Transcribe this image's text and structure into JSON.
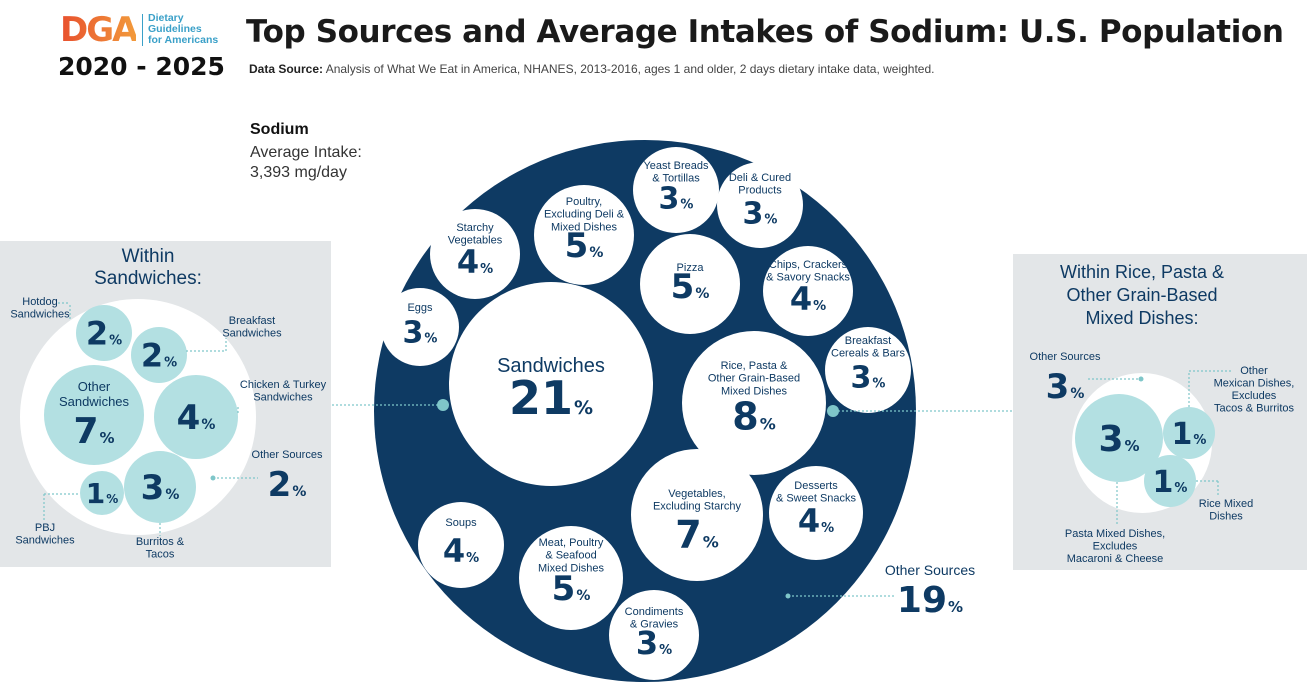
{
  "header": {
    "logo_mark": "DGA",
    "logo_lines": [
      "Dietary",
      "Guidelines",
      "for Americans"
    ],
    "years": "2020 - 2025",
    "title": "Top Sources and Average Intakes of Sodium: U.S. Population",
    "source_label": "Data Source:",
    "source_text": "Analysis of What We Eat in America, NHANES, 2013-2016, ages 1 and older, 2 days dietary intake data, weighted."
  },
  "intake": {
    "nutrient": "Sodium",
    "label": "Average Intake:",
    "value": "3,393 mg/day"
  },
  "colors": {
    "ring": "#0e3a63",
    "bubble": "#ffffff",
    "sub_bubble": "#b3e0e2",
    "panel": "#e3e6e8",
    "text": "#0e3a63",
    "connector": "#7fc6c9"
  },
  "chart_data": [
    {
      "type": "bubble",
      "name_visible": false,
      "unit": "%",
      "categories": [
        {
          "label": "Sandwiches",
          "value": 21
        },
        {
          "label": "Rice, Pasta & Other Grain-Based Mixed Dishes",
          "value": 8
        },
        {
          "label": "Vegetables, Excluding Starchy",
          "value": 7
        },
        {
          "label": "Poultry, Excluding Deli & Mixed Dishes",
          "value": 5
        },
        {
          "label": "Pizza",
          "value": 5
        },
        {
          "label": "Meat, Poultry & Seafood Mixed Dishes",
          "value": 5
        },
        {
          "label": "Starchy Vegetables",
          "value": 4
        },
        {
          "label": "Chips, Crackers & Savory Snacks",
          "value": 4
        },
        {
          "label": "Desserts & Sweet Snacks",
          "value": 4
        },
        {
          "label": "Soups",
          "value": 4
        },
        {
          "label": "Eggs",
          "value": 3
        },
        {
          "label": "Yeast Breads & Tortillas",
          "value": 3
        },
        {
          "label": "Deli & Cured Products",
          "value": 3
        },
        {
          "label": "Breakfast Cereals & Bars",
          "value": 3
        },
        {
          "label": "Condiments & Gravies",
          "value": 3
        },
        {
          "label": "Other Sources",
          "value": 19
        }
      ]
    },
    {
      "type": "bubble",
      "title": "Within Sandwiches:",
      "unit": "%",
      "categories": [
        {
          "label": "Hotdog Sandwiches",
          "value": 2
        },
        {
          "label": "Breakfast Sandwiches",
          "value": 2
        },
        {
          "label": "Other Sandwiches",
          "value": 7
        },
        {
          "label": "Chicken & Turkey Sandwiches",
          "value": 4
        },
        {
          "label": "PBJ Sandwiches",
          "value": 1
        },
        {
          "label": "Burritos & Tacos",
          "value": 3
        },
        {
          "label": "Other Sources",
          "value": 2
        }
      ]
    },
    {
      "type": "bubble",
      "title": "Within Rice, Pasta & Other Grain-Based Mixed Dishes:",
      "unit": "%",
      "categories": [
        {
          "label": "Other Sources",
          "value": 3
        },
        {
          "label": "Pasta Mixed Dishes, Excludes Macaroni & Cheese",
          "value": 3
        },
        {
          "label": "Other Mexican Dishes, Excludes Tacos & Burritos",
          "value": 1
        },
        {
          "label": "Rice Mixed Dishes",
          "value": 1
        }
      ]
    }
  ]
}
